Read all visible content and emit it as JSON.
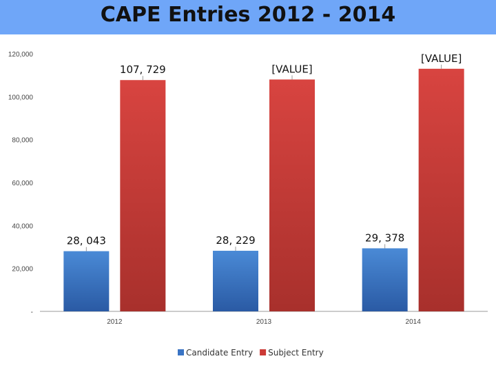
{
  "chart_data": {
    "type": "bar",
    "title": "CAPE Entries 2012 - 2014",
    "categories": [
      "2012",
      "2013",
      "2014"
    ],
    "series": [
      {
        "name": "Candidate Entry",
        "values": [
          28043,
          28229,
          29378
        ],
        "labels": [
          "28, 043",
          "28, 229",
          "29, 378"
        ],
        "color": "#3a74c4"
      },
      {
        "name": "Subject Entry",
        "values": [
          107729,
          108000,
          113000
        ],
        "labels": [
          "107, 729",
          "[VALUE]",
          "[VALUE]"
        ],
        "color": "#cc3a36"
      }
    ],
    "ylim": [
      0,
      120000
    ],
    "yticks": [
      0,
      20000,
      40000,
      60000,
      80000,
      100000,
      120000
    ],
    "ytick_labels": [
      "-",
      "20,000",
      "40,000",
      "60,000",
      "80,000",
      "100,000",
      "120,000"
    ],
    "xlabel": "",
    "ylabel": "",
    "grid": false,
    "legend_position": "bottom"
  }
}
